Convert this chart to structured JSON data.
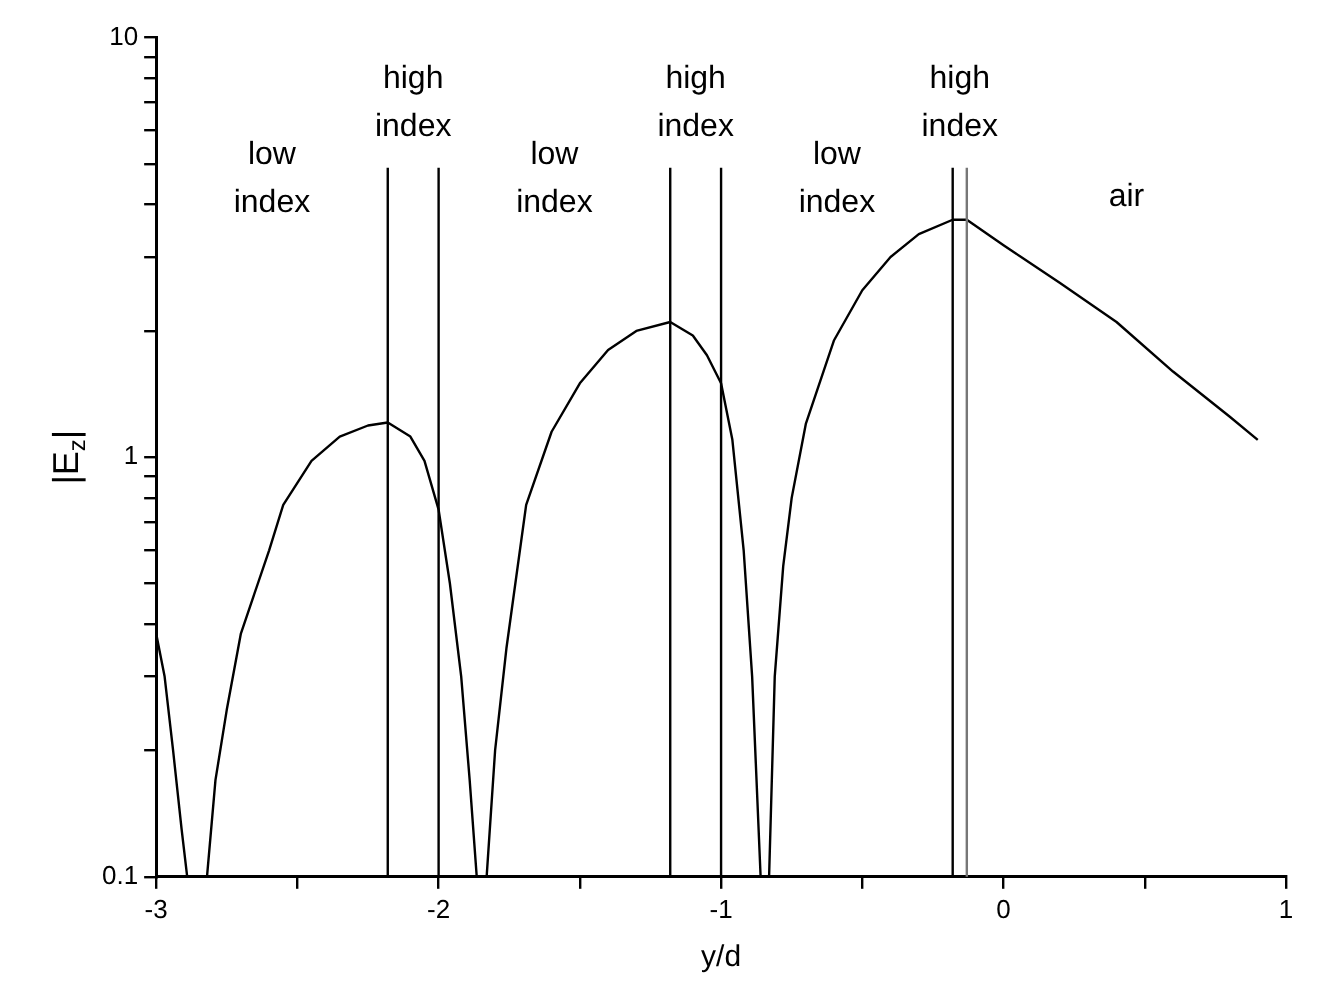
{
  "chart_data": {
    "type": "line",
    "xlabel": "y/d",
    "ylabel": "|E$_{z}$|",
    "log": "y",
    "xlim": [
      -3,
      1
    ],
    "ylim": [
      0.1,
      10
    ],
    "xticks": [
      -3,
      {
        "value": -2.5,
        "label": null
      },
      -2,
      {
        "value": -1.5,
        "label": null
      },
      -1,
      {
        "value": -0.5,
        "label": null
      },
      0,
      {
        "value": 0.5,
        "label": null
      },
      1
    ],
    "yticks": [
      0.1,
      {
        "value": 0.2,
        "label": null
      },
      {
        "value": 0.3,
        "label": null
      },
      {
        "value": 0.4,
        "label": null
      },
      {
        "value": 0.5,
        "label": null
      },
      {
        "value": 0.6,
        "label": null
      },
      {
        "value": 0.7,
        "label": null
      },
      {
        "value": 0.8,
        "label": null
      },
      {
        "value": 0.9,
        "label": null
      },
      1,
      {
        "value": 2,
        "label": null
      },
      {
        "value": 3,
        "label": null
      },
      {
        "value": 4,
        "label": null
      },
      {
        "value": 5,
        "label": null
      },
      {
        "value": 6,
        "label": null
      },
      {
        "value": 7,
        "label": null
      },
      {
        "value": 8,
        "label": null
      },
      {
        "value": 9,
        "label": null
      },
      10
    ],
    "series": [
      {
        "color": "#000000",
        "x": [
          -3,
          -2.97,
          -2.94,
          -2.91,
          -2.89,
          -2.82,
          -2.79,
          -2.75,
          -2.7,
          -2.6,
          -2.55,
          -2.45,
          -2.35,
          -2.25,
          -2.18,
          -2.1,
          -2.05,
          -2.0,
          -1.96,
          -1.92,
          -1.89,
          -1.865,
          -1.83,
          -1.8,
          -1.76,
          -1.69,
          -1.6,
          -1.5,
          -1.4,
          -1.3,
          -1.18,
          -1.1,
          -1.05,
          -1.0,
          -0.96,
          -0.92,
          -0.89,
          -0.86,
          -0.83,
          -0.81,
          -0.78,
          -0.75,
          -0.7,
          -0.6,
          -0.5,
          -0.4,
          -0.3,
          -0.18,
          -0.13,
          0,
          0.2,
          0.4,
          0.6,
          0.8,
          0.9
        ],
        "values": [
          0.38,
          0.3,
          0.2,
          0.13,
          0.1,
          0.1,
          0.17,
          0.25,
          0.38,
          0.6,
          0.77,
          0.98,
          1.12,
          1.19,
          1.21,
          1.12,
          0.98,
          0.75,
          0.5,
          0.3,
          0.17,
          0.1,
          0.1,
          0.2,
          0.35,
          0.77,
          1.15,
          1.5,
          1.8,
          2.0,
          2.1,
          1.95,
          1.75,
          1.5,
          1.1,
          0.6,
          0.3,
          0.1,
          0.1,
          0.3,
          0.55,
          0.8,
          1.2,
          1.9,
          2.5,
          3.0,
          3.4,
          3.68,
          3.68,
          3.2,
          2.6,
          2.1,
          1.6,
          1.25,
          1.1
        ]
      }
    ],
    "ref_lines": [
      {
        "axis": "x",
        "value": -2.18,
        "color": "#000000"
      },
      {
        "axis": "x",
        "value": -2.0,
        "color": "#000000"
      },
      {
        "axis": "x",
        "value": -1.18,
        "color": "#000000"
      },
      {
        "axis": "x",
        "value": -1.0,
        "color": "#000000"
      },
      {
        "axis": "x",
        "value": -0.18,
        "color": "#000000"
      },
      {
        "axis": "x",
        "value": -0.13,
        "color": "#777777"
      }
    ],
    "annotations": [
      "low index",
      "high index",
      "low index",
      "high index",
      "low index",
      "high index",
      "air"
    ]
  }
}
